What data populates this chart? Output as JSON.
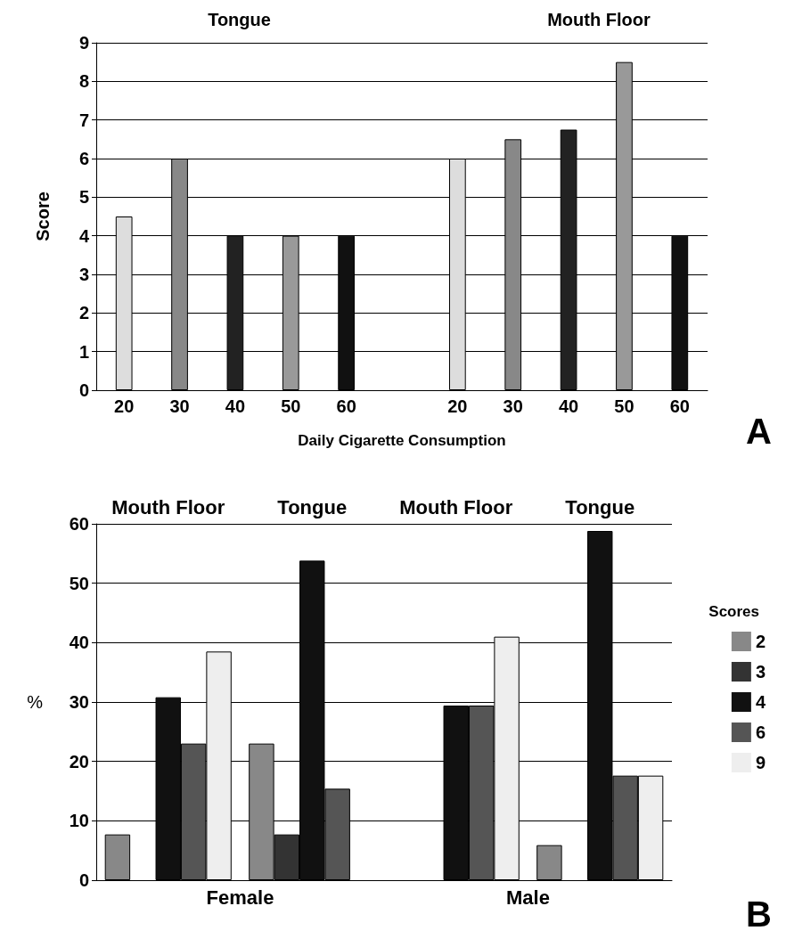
{
  "chart_data": [
    {
      "type": "bar",
      "ylabel": "Score",
      "xlabel": "Daily Cigarette Consumption",
      "annotations": [
        "Tongue",
        "Mouth Floor",
        "A"
      ],
      "categories": [
        "20",
        "30",
        "40",
        "50",
        "60",
        null,
        "20",
        "30",
        "40",
        "50",
        "60"
      ],
      "values": [
        4.5,
        6,
        4,
        4,
        4,
        null,
        6,
        6.5,
        6.75,
        8.5,
        4
      ],
      "colors": [
        "#dddddd",
        "#888888",
        "#222222",
        "#999999",
        "#111111",
        "#ffffff",
        "#dddddd",
        "#888888",
        "#222222",
        "#999999",
        "#111111"
      ],
      "ylim": [
        0,
        9
      ],
      "yticks": [
        0,
        1,
        2,
        3,
        4,
        5,
        6,
        7,
        8,
        9
      ],
      "grid": "y",
      "legend": false
    },
    {
      "type": "bar",
      "ylabel": "%",
      "legend_title": "Scores",
      "annotations": [
        "Female",
        "Male",
        "B"
      ],
      "categories": [
        "Mouth Floor",
        "Tongue",
        "Mouth Floor",
        "Tongue"
      ],
      "series": [
        {
          "name": "2",
          "color": "#888888",
          "values": [
            7.7,
            23,
            0,
            5.9
          ]
        },
        {
          "name": "3",
          "color": "#333333",
          "values": [
            0,
            7.7,
            0,
            0
          ]
        },
        {
          "name": "4",
          "color": "#111111",
          "values": [
            30.8,
            53.8,
            29.4,
            58.8
          ]
        },
        {
          "name": "6",
          "color": "#555555",
          "values": [
            23,
            15.4,
            29.4,
            17.6
          ]
        },
        {
          "name": "9",
          "color": "#eeeeee",
          "values": [
            38.5,
            0,
            41,
            17.6
          ]
        }
      ],
      "ylim": [
        0,
        60
      ],
      "yticks": [
        0,
        10,
        20,
        30,
        40,
        50,
        60
      ],
      "grid": "y",
      "legend": "right"
    }
  ]
}
